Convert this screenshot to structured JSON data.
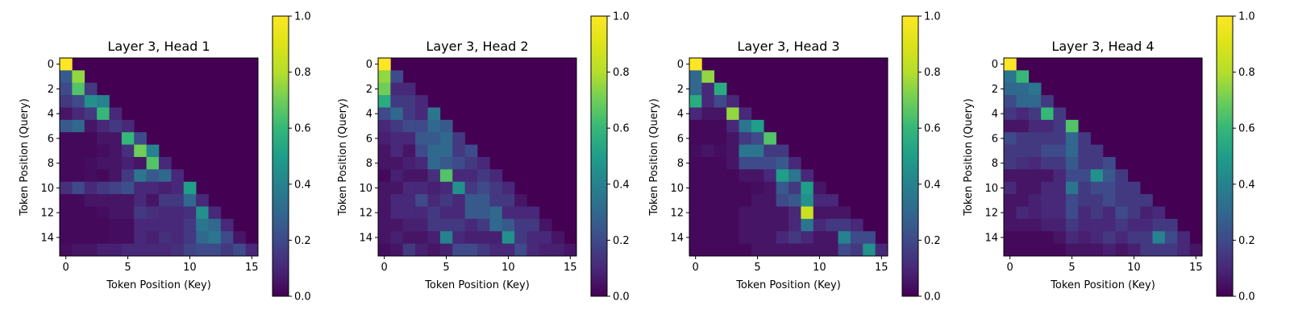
{
  "chart_data": [
    {
      "type": "heatmap",
      "title": "Layer 3, Head 1",
      "xlabel": "Token Position (Key)",
      "ylabel": "Token Position (Query)",
      "x_ticks": [
        "0",
        "5",
        "10",
        "15"
      ],
      "y_ticks": [
        "0",
        "2",
        "4",
        "6",
        "8",
        "10",
        "12",
        "14"
      ],
      "colorbar": {
        "min": 0.0,
        "max": 1.0,
        "ticks": [
          "0.0",
          "0.2",
          "0.4",
          "0.6",
          "0.8",
          "1.0"
        ],
        "colormap": "viridis"
      },
      "values": [
        [
          1.0
        ],
        [
          0.25,
          0.75
        ],
        [
          0.2,
          0.65,
          0.15
        ],
        [
          0.15,
          0.2,
          0.45,
          0.4
        ],
        [
          0.05,
          0.1,
          0.15,
          0.6,
          0.1
        ],
        [
          0.25,
          0.3,
          0.05,
          0.1,
          0.15,
          0.1
        ],
        [
          0.02,
          0.02,
          0.02,
          0.05,
          0.05,
          0.6,
          0.2
        ],
        [
          0.02,
          0.02,
          0.02,
          0.03,
          0.05,
          0.12,
          0.7,
          0.4
        ],
        [
          0.02,
          0.02,
          0.03,
          0.05,
          0.05,
          0.08,
          0.05,
          0.65,
          0.1
        ],
        [
          0.02,
          0.02,
          0.03,
          0.02,
          0.05,
          0.15,
          0.35,
          0.25,
          0.3,
          0.1
        ],
        [
          0.12,
          0.2,
          0.1,
          0.15,
          0.18,
          0.22,
          0.1,
          0.1,
          0.08,
          0.1,
          0.5
        ],
        [
          0.02,
          0.02,
          0.05,
          0.05,
          0.05,
          0.05,
          0.1,
          0.05,
          0.15,
          0.15,
          0.3,
          0.1
        ],
        [
          0.02,
          0.02,
          0.02,
          0.03,
          0.05,
          0.05,
          0.15,
          0.12,
          0.1,
          0.1,
          0.12,
          0.45,
          0.1
        ],
        [
          0.02,
          0.02,
          0.02,
          0.02,
          0.03,
          0.03,
          0.1,
          0.1,
          0.1,
          0.1,
          0.15,
          0.35,
          0.3,
          0.1
        ],
        [
          0.02,
          0.02,
          0.02,
          0.02,
          0.03,
          0.03,
          0.1,
          0.08,
          0.12,
          0.1,
          0.15,
          0.3,
          0.35,
          0.2,
          0.05
        ],
        [
          0.03,
          0.05,
          0.05,
          0.08,
          0.08,
          0.1,
          0.1,
          0.1,
          0.1,
          0.12,
          0.18,
          0.2,
          0.2,
          0.15,
          0.2,
          0.1
        ]
      ]
    },
    {
      "type": "heatmap",
      "title": "Layer 3, Head 2",
      "xlabel": "Token Position (Key)",
      "ylabel": "Token Position (Query)",
      "x_ticks": [
        "0",
        "5",
        "10",
        "15"
      ],
      "y_ticks": [
        "0",
        "2",
        "4",
        "6",
        "8",
        "10",
        "12",
        "14"
      ],
      "colorbar": {
        "min": 0.0,
        "max": 1.0,
        "ticks": [
          "0.0",
          "0.2",
          "0.4",
          "0.6",
          "0.8",
          "1.0"
        ],
        "colormap": "viridis"
      },
      "values": [
        [
          1.0
        ],
        [
          0.75,
          0.2
        ],
        [
          0.7,
          0.1,
          0.1
        ],
        [
          0.55,
          0.15,
          0.15,
          0.1
        ],
        [
          0.2,
          0.3,
          0.15,
          0.1,
          0.35
        ],
        [
          0.1,
          0.15,
          0.2,
          0.2,
          0.3,
          0.25
        ],
        [
          0.08,
          0.1,
          0.1,
          0.25,
          0.25,
          0.3,
          0.15
        ],
        [
          0.05,
          0.1,
          0.05,
          0.2,
          0.3,
          0.3,
          0.15,
          0.2
        ],
        [
          0.05,
          0.05,
          0.08,
          0.1,
          0.3,
          0.25,
          0.2,
          0.15,
          0.1
        ],
        [
          0.02,
          0.08,
          0.05,
          0.05,
          0.12,
          0.65,
          0.1,
          0.1,
          0.15,
          0.1
        ],
        [
          0.05,
          0.05,
          0.1,
          0.1,
          0.08,
          0.1,
          0.45,
          0.15,
          0.2,
          0.15,
          0.1
        ],
        [
          0.05,
          0.1,
          0.1,
          0.2,
          0.1,
          0.15,
          0.1,
          0.25,
          0.25,
          0.15,
          0.15,
          0.05
        ],
        [
          0.05,
          0.1,
          0.1,
          0.1,
          0.15,
          0.1,
          0.1,
          0.25,
          0.25,
          0.3,
          0.1,
          0.1,
          0.1
        ],
        [
          0.05,
          0.05,
          0.08,
          0.08,
          0.15,
          0.15,
          0.15,
          0.1,
          0.15,
          0.3,
          0.25,
          0.15,
          0.15,
          0.05
        ],
        [
          0.05,
          0.08,
          0.05,
          0.05,
          0.08,
          0.4,
          0.1,
          0.08,
          0.08,
          0.08,
          0.45,
          0.15,
          0.1,
          0.1,
          0.05
        ],
        [
          0.03,
          0.05,
          0.15,
          0.08,
          0.05,
          0.08,
          0.2,
          0.2,
          0.15,
          0.1,
          0.1,
          0.2,
          0.1,
          0.08,
          0.08,
          0.05
        ]
      ]
    },
    {
      "type": "heatmap",
      "title": "Layer 3, Head 3",
      "xlabel": "Token Position (Key)",
      "ylabel": "Token Position (Query)",
      "x_ticks": [
        "0",
        "5",
        "10",
        "15"
      ],
      "y_ticks": [
        "0",
        "2",
        "4",
        "6",
        "8",
        "10",
        "12",
        "14"
      ],
      "colorbar": {
        "min": 0.0,
        "max": 1.0,
        "ticks": [
          "0.0",
          "0.2",
          "0.4",
          "0.6",
          "0.8",
          "1.0"
        ],
        "colormap": "viridis"
      },
      "values": [
        [
          1.0
        ],
        [
          0.3,
          0.75
        ],
        [
          0.3,
          0.1,
          0.55
        ],
        [
          0.55,
          0.1,
          0.2,
          0.1
        ],
        [
          0.1,
          0.05,
          0.05,
          0.75,
          0.1
        ],
        [
          0.02,
          0.02,
          0.02,
          0.1,
          0.35,
          0.5
        ],
        [
          0.02,
          0.02,
          0.02,
          0.05,
          0.15,
          0.2,
          0.65
        ],
        [
          0.03,
          0.05,
          0.03,
          0.05,
          0.35,
          0.35,
          0.15,
          0.15
        ],
        [
          0.02,
          0.02,
          0.02,
          0.05,
          0.2,
          0.2,
          0.2,
          0.25,
          0.1
        ],
        [
          0.02,
          0.02,
          0.02,
          0.02,
          0.05,
          0.05,
          0.1,
          0.5,
          0.35,
          0.1
        ],
        [
          0.02,
          0.02,
          0.02,
          0.02,
          0.02,
          0.03,
          0.05,
          0.25,
          0.15,
          0.5,
          0.05
        ],
        [
          0.02,
          0.02,
          0.02,
          0.02,
          0.02,
          0.05,
          0.05,
          0.2,
          0.25,
          0.45,
          0.1,
          0.1
        ],
        [
          0.02,
          0.02,
          0.02,
          0.02,
          0.05,
          0.05,
          0.05,
          0.05,
          0.1,
          0.85,
          0.05,
          0.05,
          0.05
        ],
        [
          0.02,
          0.02,
          0.02,
          0.02,
          0.05,
          0.05,
          0.05,
          0.05,
          0.1,
          0.35,
          0.1,
          0.15,
          0.15,
          0.1
        ],
        [
          0.02,
          0.02,
          0.02,
          0.02,
          0.05,
          0.05,
          0.05,
          0.1,
          0.15,
          0.1,
          0.05,
          0.05,
          0.4,
          0.2,
          0.2
        ],
        [
          0.02,
          0.02,
          0.02,
          0.02,
          0.02,
          0.05,
          0.05,
          0.05,
          0.05,
          0.05,
          0.05,
          0.05,
          0.2,
          0.15,
          0.45,
          0.1
        ]
      ]
    },
    {
      "type": "heatmap",
      "title": "Layer 3, Head 4",
      "xlabel": "Token Position (Key)",
      "ylabel": "Token Position (Query)",
      "x_ticks": [
        "0",
        "5",
        "10",
        "15"
      ],
      "y_ticks": [
        "0",
        "2",
        "4",
        "6",
        "8",
        "10",
        "12",
        "14"
      ],
      "colorbar": {
        "min": 0.0,
        "max": 1.0,
        "ticks": [
          "0.0",
          "0.2",
          "0.4",
          "0.6",
          "0.8",
          "1.0"
        ],
        "colormap": "viridis"
      },
      "values": [
        [
          1.0
        ],
        [
          0.35,
          0.6
        ],
        [
          0.3,
          0.3,
          0.35
        ],
        [
          0.2,
          0.3,
          0.3,
          0.15
        ],
        [
          0.15,
          0.1,
          0.15,
          0.6,
          0.15
        ],
        [
          0.05,
          0.05,
          0.1,
          0.1,
          0.15,
          0.65
        ],
        [
          0.2,
          0.15,
          0.15,
          0.15,
          0.15,
          0.3,
          0.15
        ],
        [
          0.15,
          0.15,
          0.15,
          0.2,
          0.2,
          0.3,
          0.15,
          0.15
        ],
        [
          0.15,
          0.12,
          0.1,
          0.15,
          0.15,
          0.25,
          0.15,
          0.15,
          0.2
        ],
        [
          0.05,
          0.05,
          0.05,
          0.05,
          0.1,
          0.2,
          0.2,
          0.45,
          0.25,
          0.15
        ],
        [
          0.1,
          0.05,
          0.05,
          0.1,
          0.1,
          0.35,
          0.15,
          0.2,
          0.2,
          0.15,
          0.15
        ],
        [
          0.05,
          0.05,
          0.08,
          0.1,
          0.1,
          0.2,
          0.15,
          0.15,
          0.2,
          0.15,
          0.15,
          0.15
        ],
        [
          0.05,
          0.1,
          0.08,
          0.1,
          0.1,
          0.2,
          0.1,
          0.15,
          0.1,
          0.2,
          0.15,
          0.08,
          0.1
        ],
        [
          0.05,
          0.05,
          0.05,
          0.08,
          0.08,
          0.15,
          0.1,
          0.1,
          0.1,
          0.15,
          0.1,
          0.1,
          0.15,
          0.15
        ],
        [
          0.02,
          0.02,
          0.02,
          0.02,
          0.05,
          0.1,
          0.08,
          0.1,
          0.15,
          0.1,
          0.15,
          0.15,
          0.4,
          0.2,
          0.1
        ],
        [
          0.02,
          0.02,
          0.02,
          0.02,
          0.02,
          0.05,
          0.05,
          0.05,
          0.08,
          0.05,
          0.08,
          0.15,
          0.15,
          0.15,
          0.1,
          0.05
        ]
      ]
    }
  ]
}
